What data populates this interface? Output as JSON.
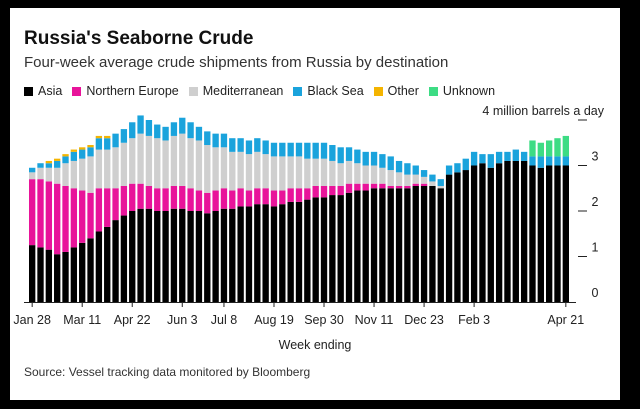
{
  "chart_data": {
    "type": "bar",
    "stacked": true,
    "title": "Russia's Seaborne Crude",
    "subtitle": "Four-week average crude shipments from Russia by destination",
    "unit_label": "4 million barrels a day",
    "xlabel": "Week ending",
    "source": "Source: Vessel tracking data monitored by Bloomberg",
    "ylim": [
      0,
      4
    ],
    "y_ticks": [
      "0",
      "1",
      "2",
      "3"
    ],
    "grid": false,
    "legend_position": "top",
    "x_tick_labels": [
      {
        "index": 0,
        "label": "Jan 28"
      },
      {
        "index": 6,
        "label": "Mar 11"
      },
      {
        "index": 12,
        "label": "Apr 22"
      },
      {
        "index": 18,
        "label": "Jun 3"
      },
      {
        "index": 23,
        "label": "Jul 8"
      },
      {
        "index": 29,
        "label": "Aug 19"
      },
      {
        "index": 35,
        "label": "Sep 30"
      },
      {
        "index": 41,
        "label": "Nov 11"
      },
      {
        "index": 47,
        "label": "Dec 23"
      },
      {
        "index": 53,
        "label": "Feb 3"
      },
      {
        "index": 64,
        "label": "Apr 21"
      }
    ],
    "series": [
      {
        "name": "Asia",
        "color": "#000000",
        "values": [
          1.25,
          1.2,
          1.15,
          1.05,
          1.1,
          1.2,
          1.3,
          1.4,
          1.55,
          1.65,
          1.8,
          1.9,
          2.0,
          2.05,
          2.05,
          2.0,
          2.0,
          2.05,
          2.05,
          2.0,
          2.0,
          1.95,
          2.0,
          2.05,
          2.05,
          2.1,
          2.1,
          2.15,
          2.15,
          2.1,
          2.15,
          2.2,
          2.2,
          2.25,
          2.3,
          2.3,
          2.35,
          2.35,
          2.4,
          2.45,
          2.45,
          2.5,
          2.5,
          2.5,
          2.5,
          2.5,
          2.55,
          2.55,
          2.55,
          2.5,
          2.8,
          2.85,
          2.9,
          3.0,
          3.05,
          2.95,
          3.05,
          3.1,
          3.1,
          3.1,
          3.0,
          2.95,
          3.0,
          3.0,
          3.0
        ]
      },
      {
        "name": "Northern Europe",
        "color": "#e8149a",
        "values": [
          1.45,
          1.5,
          1.5,
          1.55,
          1.45,
          1.3,
          1.15,
          1.0,
          0.95,
          0.85,
          0.7,
          0.65,
          0.6,
          0.55,
          0.5,
          0.5,
          0.5,
          0.5,
          0.5,
          0.5,
          0.45,
          0.45,
          0.45,
          0.45,
          0.4,
          0.4,
          0.35,
          0.35,
          0.35,
          0.35,
          0.3,
          0.3,
          0.3,
          0.25,
          0.25,
          0.25,
          0.2,
          0.2,
          0.2,
          0.15,
          0.15,
          0.1,
          0.1,
          0.05,
          0.05,
          0.05,
          0.05,
          0.05,
          0.0,
          0.0,
          0.0,
          0.0,
          0.0,
          0.0,
          0.0,
          0.0,
          0.0,
          0.0,
          0.0,
          0.0,
          0.0,
          0.0,
          0.0,
          0.0,
          0.0
        ]
      },
      {
        "name": "Mediterranean",
        "color": "#cfcfcf",
        "values": [
          0.15,
          0.25,
          0.3,
          0.35,
          0.5,
          0.6,
          0.7,
          0.8,
          0.85,
          0.85,
          0.9,
          0.95,
          1.0,
          1.1,
          1.1,
          1.1,
          1.05,
          1.1,
          1.15,
          1.1,
          1.1,
          1.05,
          0.95,
          0.9,
          0.85,
          0.8,
          0.8,
          0.8,
          0.75,
          0.75,
          0.75,
          0.7,
          0.7,
          0.65,
          0.6,
          0.6,
          0.55,
          0.5,
          0.5,
          0.45,
          0.4,
          0.4,
          0.35,
          0.35,
          0.3,
          0.25,
          0.2,
          0.15,
          0.1,
          0.05,
          0.0,
          0.0,
          0.0,
          0.0,
          0.0,
          0.0,
          0.0,
          0.0,
          0.0,
          0.0,
          0.0,
          0.0,
          0.0,
          0.0,
          0.0
        ]
      },
      {
        "name": "Black Sea",
        "color": "#1aa3dc",
        "values": [
          0.1,
          0.1,
          0.1,
          0.15,
          0.15,
          0.2,
          0.2,
          0.2,
          0.25,
          0.25,
          0.3,
          0.3,
          0.35,
          0.4,
          0.35,
          0.3,
          0.3,
          0.3,
          0.35,
          0.35,
          0.3,
          0.3,
          0.3,
          0.3,
          0.3,
          0.3,
          0.3,
          0.3,
          0.3,
          0.3,
          0.3,
          0.3,
          0.3,
          0.35,
          0.35,
          0.35,
          0.35,
          0.35,
          0.3,
          0.3,
          0.3,
          0.3,
          0.3,
          0.3,
          0.25,
          0.25,
          0.2,
          0.15,
          0.15,
          0.15,
          0.2,
          0.2,
          0.25,
          0.3,
          0.2,
          0.3,
          0.25,
          0.2,
          0.25,
          0.2,
          0.2,
          0.25,
          0.2,
          0.2,
          0.2
        ]
      },
      {
        "name": "Other",
        "color": "#f4b400",
        "values": [
          0.0,
          0.0,
          0.05,
          0.05,
          0.05,
          0.05,
          0.05,
          0.05,
          0.05,
          0.05,
          0.0,
          0.0,
          0.0,
          0.0,
          0.0,
          0.0,
          0.0,
          0.0,
          0.0,
          0.0,
          0.0,
          0.0,
          0.0,
          0.0,
          0.0,
          0.0,
          0.0,
          0.0,
          0.0,
          0.0,
          0.0,
          0.0,
          0.0,
          0.0,
          0.0,
          0.0,
          0.0,
          0.0,
          0.0,
          0.0,
          0.0,
          0.0,
          0.0,
          0.0,
          0.0,
          0.0,
          0.0,
          0.0,
          0.0,
          0.0,
          0.0,
          0.0,
          0.0,
          0.0,
          0.0,
          0.0,
          0.0,
          0.0,
          0.0,
          0.0,
          0.0,
          0.0,
          0.0,
          0.0,
          0.0
        ]
      },
      {
        "name": "Unknown",
        "color": "#3ddc84",
        "values": [
          0.0,
          0.0,
          0.0,
          0.0,
          0.0,
          0.0,
          0.0,
          0.0,
          0.0,
          0.0,
          0.0,
          0.0,
          0.0,
          0.0,
          0.0,
          0.0,
          0.0,
          0.0,
          0.0,
          0.0,
          0.0,
          0.0,
          0.0,
          0.0,
          0.0,
          0.0,
          0.0,
          0.0,
          0.0,
          0.0,
          0.0,
          0.0,
          0.0,
          0.0,
          0.0,
          0.0,
          0.0,
          0.0,
          0.0,
          0.0,
          0.0,
          0.0,
          0.0,
          0.0,
          0.0,
          0.0,
          0.0,
          0.0,
          0.0,
          0.0,
          0.0,
          0.0,
          0.0,
          0.0,
          0.0,
          0.0,
          0.0,
          0.0,
          0.0,
          0.0,
          0.35,
          0.3,
          0.35,
          0.4,
          0.45
        ]
      }
    ]
  }
}
